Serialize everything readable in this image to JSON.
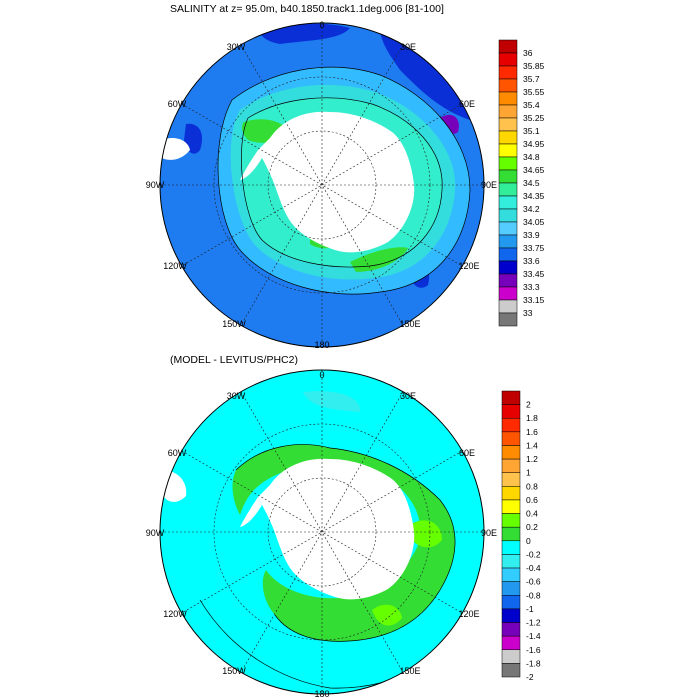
{
  "panels": [
    {
      "title": "SALINITY at z=  95.0m, b40.1850.track1.1deg.006 [81-100]",
      "lon_labels": [
        "0",
        "30E",
        "60E",
        "90E",
        "120E",
        "150E",
        "180",
        "150W",
        "120W",
        "90W",
        "60W",
        "30W"
      ],
      "colorbar": {
        "labels": [
          "36",
          "35.85",
          "35.7",
          "35.55",
          "35.4",
          "35.25",
          "35.1",
          "34.95",
          "34.8",
          "34.65",
          "34.5",
          "34.35",
          "34.2",
          "34.05",
          "33.9",
          "33.75",
          "33.6",
          "33.45",
          "33.3",
          "33.15",
          "33"
        ],
        "colors": [
          "#c00000",
          "#e60000",
          "#ff2a00",
          "#ff5500",
          "#ff8c00",
          "#ffa533",
          "#ffc34d",
          "#ffd700",
          "#ffff00",
          "#66ff00",
          "#33dd33",
          "#33ee99",
          "#33eedd",
          "#33dddd",
          "#55ccff",
          "#2299ee",
          "#1166ee",
          "#0000cc",
          "#7700bb",
          "#cc00cc",
          "#cccccc",
          "#777777"
        ]
      }
    },
    {
      "title": "(MODEL - LEVITUS/PHC2)",
      "lon_labels": [
        "0",
        "30E",
        "60E",
        "90E",
        "120E",
        "150E",
        "180",
        "150W",
        "120W",
        "90W",
        "60W",
        "30W"
      ],
      "colorbar": {
        "labels": [
          "2",
          "1.8",
          "1.6",
          "1.4",
          "1.2",
          "1",
          "0.8",
          "0.6",
          "0.4",
          "0.2",
          "0",
          "-0.2",
          "-0.4",
          "-0.6",
          "-0.8",
          "-1",
          "-1.2",
          "-1.4",
          "-1.6",
          "-1.8",
          "-2"
        ],
        "colors": [
          "#c00000",
          "#e60000",
          "#ff2a00",
          "#ff5500",
          "#ff8c00",
          "#ffa533",
          "#ffc34d",
          "#ffd700",
          "#ffff00",
          "#66ff00",
          "#33dd33",
          "#00ffff",
          "#33eeee",
          "#33ccff",
          "#2299ee",
          "#1166ee",
          "#0000cc",
          "#7700bb",
          "#cc00cc",
          "#cccccc",
          "#777777"
        ]
      }
    }
  ]
}
